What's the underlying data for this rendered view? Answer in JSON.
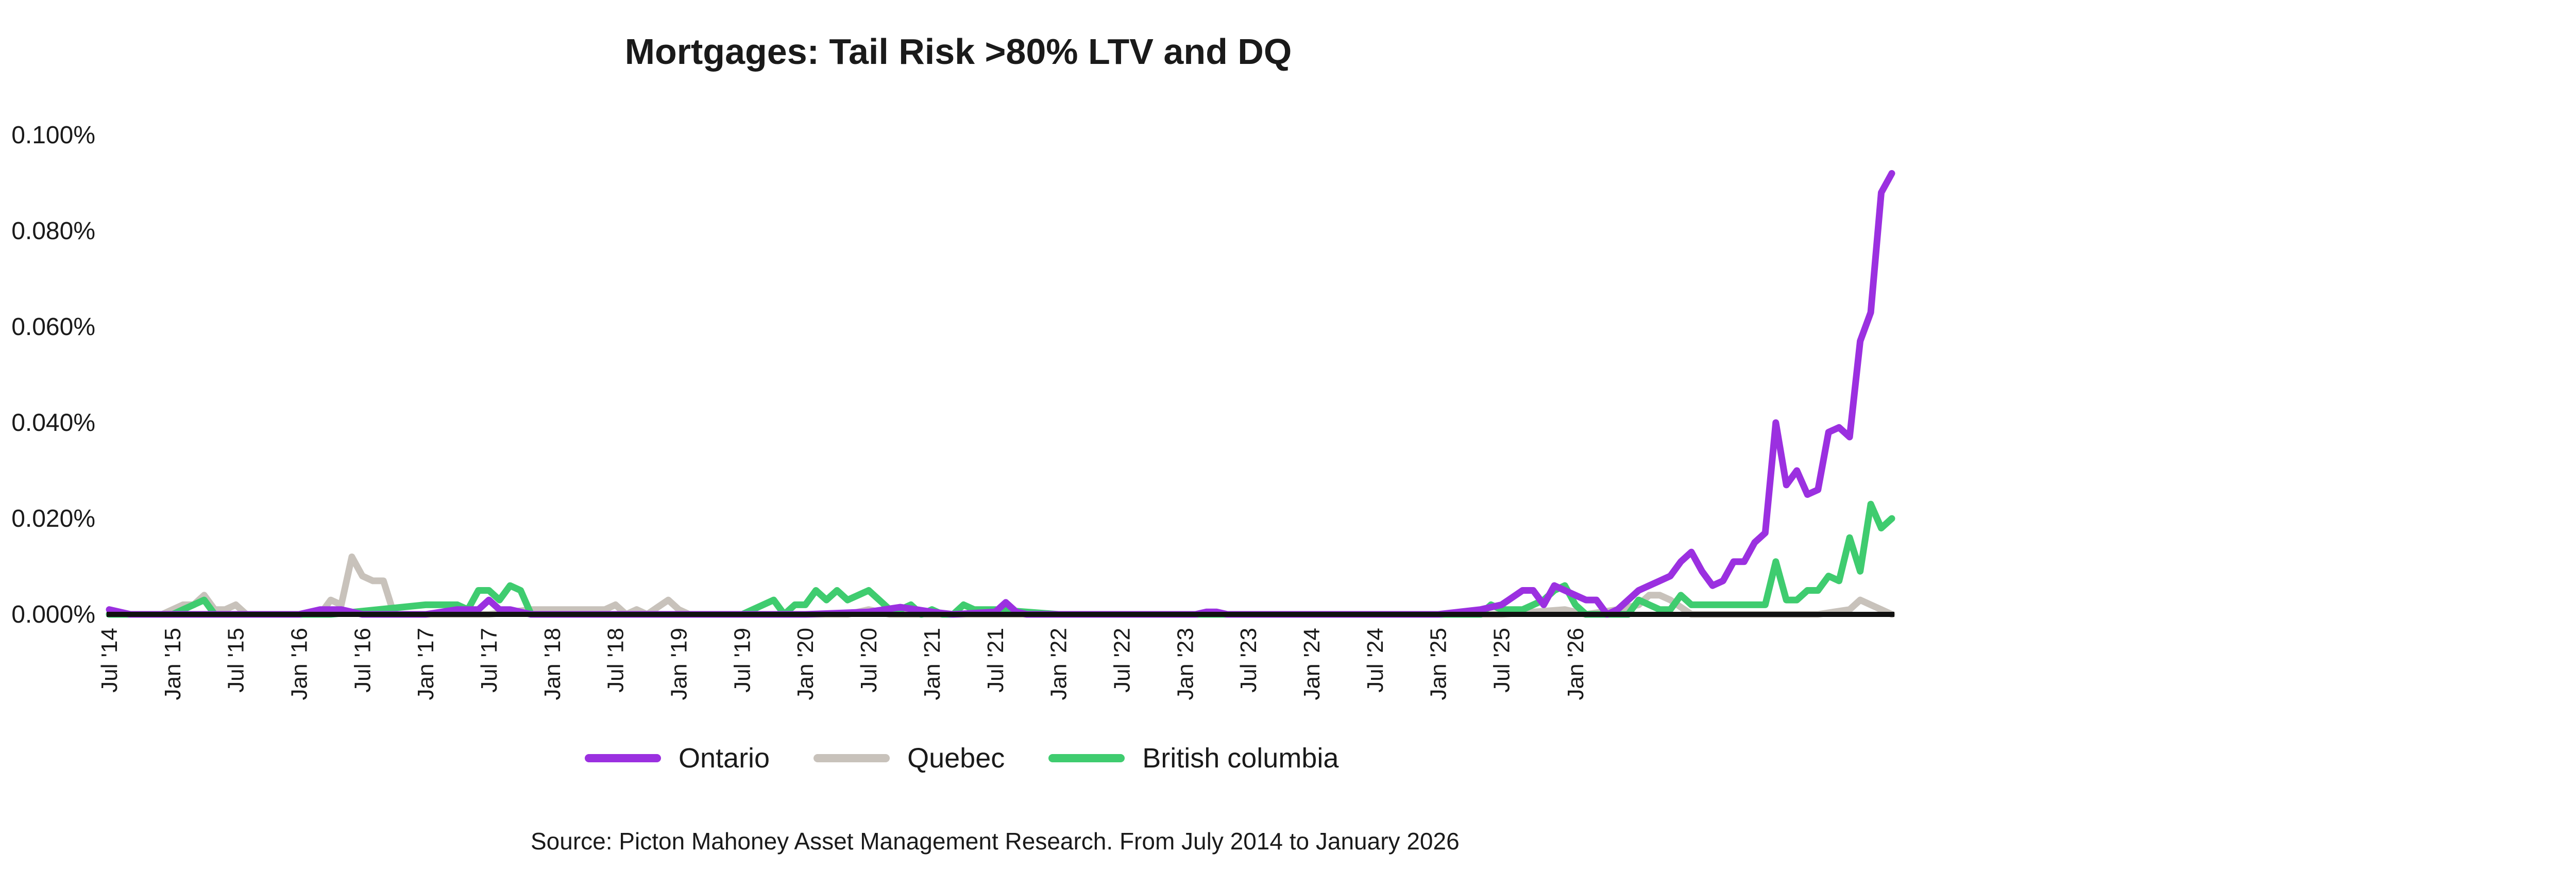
{
  "chart_data": {
    "type": "line",
    "title": "Mortgages: Tail Risk >80% LTV and DQ",
    "xlabel": "",
    "ylabel": "",
    "ylim": [
      0,
      0.1
    ],
    "y_ticks": [
      "0.000%",
      "0.020%",
      "0.040%",
      "0.060%",
      "0.080%",
      "0.100%"
    ],
    "y_tick_values": [
      0,
      0.02,
      0.04,
      0.06,
      0.08,
      0.1
    ],
    "x_tick_labels": [
      "Jul '14",
      "Jan '15",
      "Jul '15",
      "Jan '16",
      "Jul '16",
      "Jan '17",
      "Jul '17",
      "Jan '18",
      "Jul '18",
      "Jan '19",
      "Jul '19",
      "Jan '20",
      "Jul '20",
      "Jan '21",
      "Jul '21",
      "Jan '22",
      "Jul '22",
      "Jan '23",
      "Jul '23",
      "Jan '24",
      "Jul '24",
      "Jan '25",
      "Jul '25",
      "Jan '26"
    ],
    "x_start": "2014-07",
    "x_end": "2026-01",
    "source": "Source: Picton Mahoney Asset Management Research. From July 2014 to January 2026",
    "series": [
      {
        "name": "Ontario",
        "color": "#9b30e0",
        "points": [
          [
            0,
            0.001
          ],
          [
            2,
            0
          ],
          [
            9,
            0
          ],
          [
            12,
            0
          ],
          [
            18,
            0
          ],
          [
            20,
            0.001
          ],
          [
            22,
            0.001
          ],
          [
            24,
            0
          ],
          [
            30,
            0
          ],
          [
            33,
            0.001
          ],
          [
            35,
            0.001
          ],
          [
            36,
            0.003
          ],
          [
            37,
            0.001
          ],
          [
            38,
            0.001
          ],
          [
            40,
            0
          ],
          [
            48,
            0
          ],
          [
            56,
            0
          ],
          [
            60,
            0
          ],
          [
            66,
            0
          ],
          [
            72,
            0.0005
          ],
          [
            75,
            0.0015
          ],
          [
            78,
            0.0005
          ],
          [
            80,
            0
          ],
          [
            84,
            0.0005
          ],
          [
            85,
            0.0025
          ],
          [
            86,
            0.0005
          ],
          [
            87,
            0
          ],
          [
            96,
            0
          ],
          [
            110,
            0
          ],
          [
            120,
            0
          ],
          [
            99,
            0
          ],
          [
            100,
            0
          ],
          [
            101,
            0
          ],
          [
            102,
            0
          ],
          [
            103,
            0
          ],
          [
            104,
            0.0005
          ],
          [
            105,
            0.0005
          ],
          [
            106,
            0
          ],
          [
            107,
            0
          ],
          [
            108,
            0
          ],
          [
            112,
            0
          ],
          [
            116,
            0
          ],
          [
            126,
            0
          ],
          [
            130,
            0.001
          ],
          [
            132,
            0.002
          ],
          [
            134,
            0.005
          ],
          [
            135,
            0.005
          ],
          [
            136,
            0.002
          ],
          [
            137,
            0.006
          ],
          [
            138,
            0.005
          ],
          [
            139,
            0.004
          ],
          [
            140,
            0.003
          ],
          [
            141,
            0.003
          ],
          [
            142,
            0
          ],
          [
            143,
            0.001
          ],
          [
            144,
            0.003
          ],
          [
            145,
            0.005
          ],
          [
            146,
            0.006
          ],
          [
            147,
            0.007
          ],
          [
            148,
            0.008
          ],
          [
            149,
            0.011
          ],
          [
            150,
            0.013
          ],
          [
            151,
            0.009
          ],
          [
            152,
            0.006
          ],
          [
            153,
            0.007
          ],
          [
            154,
            0.011
          ],
          [
            155,
            0.011
          ],
          [
            156,
            0.015
          ],
          [
            157,
            0.017
          ],
          [
            158,
            0.04
          ],
          [
            159,
            0.027
          ],
          [
            160,
            0.03
          ],
          [
            161,
            0.025
          ],
          [
            162,
            0.026
          ],
          [
            163,
            0.038
          ],
          [
            164,
            0.039
          ],
          [
            165,
            0.037
          ],
          [
            166,
            0.057
          ],
          [
            167,
            0.063
          ],
          [
            168,
            0.088
          ],
          [
            169,
            0.092
          ]
        ]
      },
      {
        "name": "Quebec",
        "color": "#c8c2bb",
        "points": [
          [
            0,
            0
          ],
          [
            5,
            0
          ],
          [
            7,
            0.002
          ],
          [
            8,
            0.002
          ],
          [
            9,
            0.004
          ],
          [
            10,
            0.001
          ],
          [
            11,
            0.001
          ],
          [
            12,
            0.002
          ],
          [
            13,
            0
          ],
          [
            18,
            0
          ],
          [
            20,
            0
          ],
          [
            21,
            0.003
          ],
          [
            22,
            0.002
          ],
          [
            23,
            0.012
          ],
          [
            24,
            0.008
          ],
          [
            25,
            0.007
          ],
          [
            26,
            0.007
          ],
          [
            27,
            0
          ],
          [
            36,
            0
          ],
          [
            40,
            0.001
          ],
          [
            44,
            0.001
          ],
          [
            47,
            0.001
          ],
          [
            48,
            0.002
          ],
          [
            49,
            0
          ],
          [
            50,
            0.001
          ],
          [
            51,
            0
          ],
          [
            53,
            0.003
          ],
          [
            54,
            0.001
          ],
          [
            55,
            0
          ],
          [
            70,
            0
          ],
          [
            72,
            0.001
          ],
          [
            74,
            0
          ],
          [
            84,
            0
          ],
          [
            96,
            0
          ],
          [
            110,
            0
          ],
          [
            120,
            0
          ],
          [
            132,
            0
          ],
          [
            138,
            0.001
          ],
          [
            140,
            0
          ],
          [
            143,
            0.001
          ],
          [
            145,
            0.002
          ],
          [
            146,
            0.004
          ],
          [
            147,
            0.004
          ],
          [
            148,
            0.003
          ],
          [
            150,
            0
          ],
          [
            162,
            0
          ],
          [
            165,
            0.001
          ],
          [
            166,
            0.003
          ],
          [
            167,
            0.002
          ],
          [
            168,
            0.001
          ],
          [
            169,
            0
          ]
        ]
      },
      {
        "name": "British columbia",
        "color": "#3fcc6f",
        "points": [
          [
            0,
            0
          ],
          [
            6,
            0
          ],
          [
            7,
            0.001
          ],
          [
            8,
            0.002
          ],
          [
            9,
            0.003
          ],
          [
            10,
            0
          ],
          [
            18,
            0
          ],
          [
            19,
            0
          ],
          [
            20,
            0
          ],
          [
            21,
            0
          ],
          [
            30,
            0.002
          ],
          [
            31,
            0.002
          ],
          [
            32,
            0.002
          ],
          [
            33,
            0.002
          ],
          [
            34,
            0.001
          ],
          [
            35,
            0.005
          ],
          [
            36,
            0.005
          ],
          [
            37,
            0.003
          ],
          [
            38,
            0.006
          ],
          [
            39,
            0.005
          ],
          [
            40,
            0
          ],
          [
            44,
            0
          ],
          [
            48,
            0
          ],
          [
            60,
            0
          ],
          [
            62,
            0.002
          ],
          [
            63,
            0.003
          ],
          [
            64,
            0
          ],
          [
            65,
            0.002
          ],
          [
            66,
            0.002
          ],
          [
            67,
            0.005
          ],
          [
            68,
            0.003
          ],
          [
            69,
            0.005
          ],
          [
            70,
            0.003
          ],
          [
            71,
            0.004
          ],
          [
            72,
            0.005
          ],
          [
            73,
            0.003
          ],
          [
            74,
            0.001
          ],
          [
            75,
            0.001
          ],
          [
            76,
            0.002
          ],
          [
            77,
            0
          ],
          [
            78,
            0.001
          ],
          [
            79,
            0
          ],
          [
            80,
            0
          ],
          [
            81,
            0.002
          ],
          [
            82,
            0.001
          ],
          [
            83,
            0.001
          ],
          [
            84,
            0.001
          ],
          [
            90,
            0
          ],
          [
            100,
            0
          ],
          [
            110,
            0
          ],
          [
            120,
            0
          ],
          [
            130,
            0
          ],
          [
            131,
            0.002
          ],
          [
            132,
            0.001
          ],
          [
            133,
            0.001
          ],
          [
            134,
            0.001
          ],
          [
            135,
            0.002
          ],
          [
            136,
            0.003
          ],
          [
            137,
            0.005
          ],
          [
            138,
            0.006
          ],
          [
            139,
            0.002
          ],
          [
            140,
            0
          ],
          [
            142,
            0
          ],
          [
            144,
            0
          ],
          [
            145,
            0.003
          ],
          [
            146,
            0.002
          ],
          [
            147,
            0.001
          ],
          [
            148,
            0.001
          ],
          [
            149,
            0.004
          ],
          [
            150,
            0.002
          ],
          [
            151,
            0.002
          ],
          [
            152,
            0.002
          ],
          [
            153,
            0.002
          ],
          [
            154,
            0.002
          ],
          [
            155,
            0.002
          ],
          [
            156,
            0.002
          ],
          [
            157,
            0.002
          ],
          [
            158,
            0.011
          ],
          [
            159,
            0.003
          ],
          [
            160,
            0.003
          ],
          [
            161,
            0.005
          ],
          [
            162,
            0.005
          ],
          [
            163,
            0.008
          ],
          [
            164,
            0.007
          ],
          [
            165,
            0.016
          ],
          [
            166,
            0.009
          ],
          [
            167,
            0.023
          ],
          [
            168,
            0.018
          ],
          [
            169,
            0.02
          ]
        ]
      }
    ]
  }
}
